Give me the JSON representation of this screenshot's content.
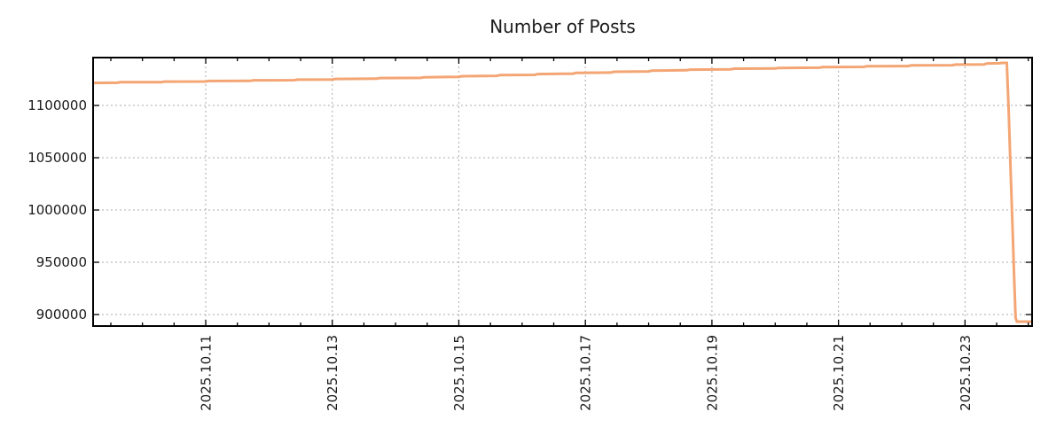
{
  "page": {
    "background": "#ffffff"
  },
  "chart_data": {
    "type": "line",
    "title": "Number of Posts",
    "xlabel": "",
    "ylabel": "",
    "x_unit": "day of month, October 2025",
    "xlim": [
      9.22,
      24.06
    ],
    "ylim": [
      889000,
      1145800
    ],
    "grid": true,
    "legend_position": "none",
    "axis_color": "#000000",
    "grid_color": "#ababab",
    "tick_label_color": "#1a1a1a",
    "x_major_ticks": [
      {
        "x": 11,
        "label": "2025.10.11"
      },
      {
        "x": 13,
        "label": "2025.10.13"
      },
      {
        "x": 15,
        "label": "2025.10.15"
      },
      {
        "x": 17,
        "label": "2025.10.17"
      },
      {
        "x": 19,
        "label": "2025.10.19"
      },
      {
        "x": 21,
        "label": "2025.10.21"
      },
      {
        "x": 23,
        "label": "2025.10.23"
      }
    ],
    "x_minor_step": 0.5,
    "y_major_ticks": [
      {
        "value": 900000,
        "label": "900000"
      },
      {
        "value": 950000,
        "label": "950000"
      },
      {
        "value": 1000000,
        "label": "1000000"
      },
      {
        "value": 1050000,
        "label": "1050000"
      },
      {
        "value": 1100000,
        "label": "1100000"
      }
    ],
    "series": [
      {
        "name": "Number of Posts",
        "color": "#f4a574",
        "line_width": 3,
        "points": [
          [
            9.22,
            1121600
          ],
          [
            9.6,
            1121700
          ],
          [
            9.65,
            1122200
          ],
          [
            10.3,
            1122300
          ],
          [
            10.35,
            1122800
          ],
          [
            11,
            1122900
          ],
          [
            11.05,
            1123400
          ],
          [
            11.7,
            1123500
          ],
          [
            11.75,
            1124100
          ],
          [
            12.4,
            1124200
          ],
          [
            12.45,
            1124700
          ],
          [
            13,
            1124900
          ],
          [
            13.05,
            1125400
          ],
          [
            13.7,
            1125600
          ],
          [
            13.75,
            1126200
          ],
          [
            14.4,
            1126400
          ],
          [
            14.45,
            1127000
          ],
          [
            15,
            1127400
          ],
          [
            15.05,
            1128000
          ],
          [
            15.6,
            1128300
          ],
          [
            15.65,
            1129000
          ],
          [
            16.2,
            1129300
          ],
          [
            16.25,
            1130000
          ],
          [
            16.8,
            1130400
          ],
          [
            16.85,
            1131100
          ],
          [
            17.4,
            1131500
          ],
          [
            17.45,
            1132200
          ],
          [
            18,
            1132600
          ],
          [
            18.05,
            1133300
          ],
          [
            18.6,
            1133700
          ],
          [
            18.65,
            1134300
          ],
          [
            19.3,
            1134600
          ],
          [
            19.35,
            1135200
          ],
          [
            20,
            1135400
          ],
          [
            20.05,
            1135900
          ],
          [
            20.7,
            1136100
          ],
          [
            20.75,
            1136700
          ],
          [
            21.4,
            1136900
          ],
          [
            21.45,
            1137500
          ],
          [
            22.1,
            1137700
          ],
          [
            22.15,
            1138300
          ],
          [
            22.8,
            1138500
          ],
          [
            22.85,
            1139100
          ],
          [
            23.3,
            1139300
          ],
          [
            23.35,
            1140200
          ],
          [
            23.55,
            1140400
          ],
          [
            23.58,
            1140700
          ],
          [
            23.66,
            1140700
          ],
          [
            23.69,
            1095000
          ],
          [
            23.72,
            1040000
          ],
          [
            23.75,
            985000
          ],
          [
            23.78,
            930000
          ],
          [
            23.8,
            897000
          ],
          [
            23.82,
            893200
          ],
          [
            24.06,
            893200
          ]
        ]
      }
    ]
  }
}
